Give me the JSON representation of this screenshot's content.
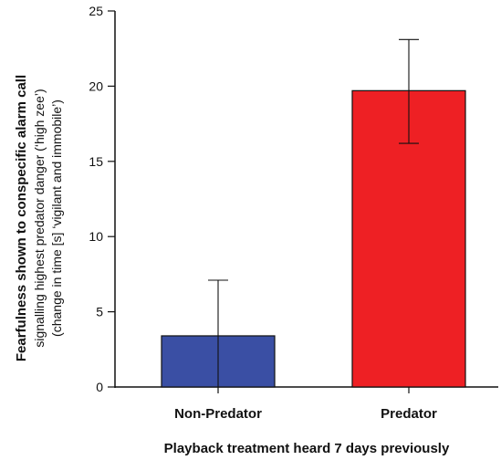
{
  "chart_data": {
    "type": "bar",
    "categories": [
      "Non-Predator",
      "Predator"
    ],
    "values": [
      3.4,
      19.7
    ],
    "error_bars": [
      {
        "low": 0,
        "high": 7.1
      },
      {
        "low": 16.2,
        "high": 23.1
      }
    ],
    "colors": [
      "#3a4fa4",
      "#ee2024"
    ],
    "ylim": [
      0,
      25
    ],
    "yticks": [
      "0",
      "5",
      "10",
      "15",
      "20",
      "25"
    ],
    "xlabel": "Playback treatment heard 7 days previously",
    "ylabel_lines": [
      "Fearfulness shown to conspecific alarm call",
      "signalling highest predator danger (‘high zee’)",
      "(change in time [s] ‘vigilant  and immobile’)"
    ],
    "grid": false
  }
}
